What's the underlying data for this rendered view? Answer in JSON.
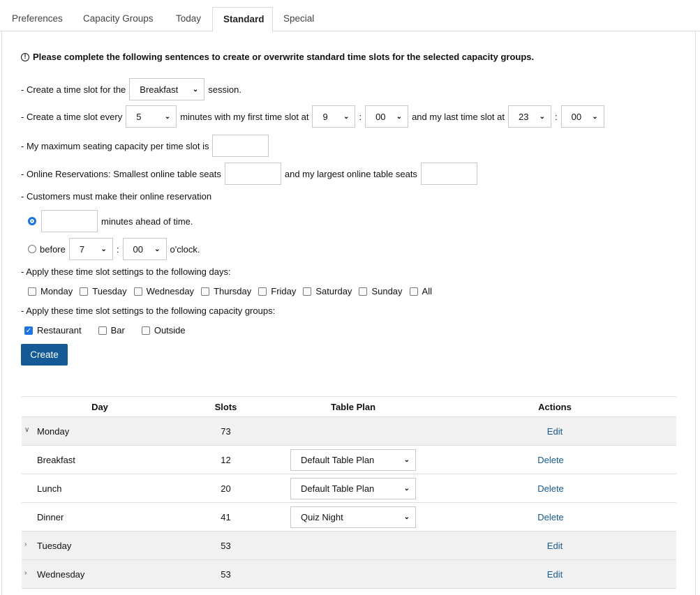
{
  "tabs": [
    {
      "label": "Preferences"
    },
    {
      "label": "Capacity Groups"
    },
    {
      "label": "Today"
    },
    {
      "label": "Standard",
      "active": true
    },
    {
      "label": "Special"
    }
  ],
  "notice": "Please complete the following sentences to create or overwrite standard time slots for the selected capacity groups.",
  "form": {
    "line1": {
      "pre": "- Create a time slot for the",
      "session": "Breakfast",
      "post": "session."
    },
    "line2": {
      "pre": "- Create a time slot every",
      "every": "5",
      "mid": "minutes with my first time slot at",
      "first_h": "9",
      "first_m": "00",
      "mid2": "and my last time slot at",
      "last_h": "23",
      "last_m": "00",
      "colon": ":"
    },
    "line3": {
      "text": "- My maximum seating capacity per time slot is",
      "value": ""
    },
    "line4": {
      "pre": "- Online Reservations: Smallest online table seats",
      "mid": "and my largest online table seats",
      "smallest": "",
      "largest": ""
    },
    "line5": {
      "text": "- Customers must make their online reservation"
    },
    "ahead": {
      "selected": true,
      "value": "",
      "label": "minutes ahead of time."
    },
    "before": {
      "selected": false,
      "label": "before",
      "h": "7",
      "m": "00",
      "post": "o'clock."
    },
    "days_label": "- Apply these time slot settings to the following days:",
    "days": [
      {
        "label": "Monday",
        "checked": false
      },
      {
        "label": "Tuesday",
        "checked": false
      },
      {
        "label": "Wednesday",
        "checked": false
      },
      {
        "label": "Thursday",
        "checked": false
      },
      {
        "label": "Friday",
        "checked": false
      },
      {
        "label": "Saturday",
        "checked": false
      },
      {
        "label": "Sunday",
        "checked": false
      },
      {
        "label": "All",
        "checked": false
      }
    ],
    "groups_label": "- Apply these time slot settings to the following capacity groups:",
    "groups": [
      {
        "label": "Restaurant",
        "checked": true
      },
      {
        "label": "Bar",
        "checked": false
      },
      {
        "label": "Outside",
        "checked": false
      }
    ],
    "create_label": "Create"
  },
  "table": {
    "headers": [
      "Day",
      "Slots",
      "Table Plan",
      "Actions"
    ],
    "rows": [
      {
        "type": "day",
        "expanded": true,
        "day": "Monday",
        "slots": "73",
        "action": "Edit"
      },
      {
        "type": "session",
        "day": "Breakfast",
        "slots": "12",
        "plan": "Default Table Plan",
        "action": "Delete"
      },
      {
        "type": "session",
        "day": "Lunch",
        "slots": "20",
        "plan": "Default Table Plan",
        "action": "Delete"
      },
      {
        "type": "session",
        "day": "Dinner",
        "slots": "41",
        "plan": "Quiz Night",
        "action": "Delete"
      },
      {
        "type": "day",
        "expanded": false,
        "day": "Tuesday",
        "slots": "53",
        "action": "Edit"
      },
      {
        "type": "day",
        "expanded": false,
        "day": "Wednesday",
        "slots": "53",
        "action": "Edit"
      }
    ]
  },
  "colors": {
    "accent": "#135a96",
    "row_bg": "#f1f1f1"
  }
}
